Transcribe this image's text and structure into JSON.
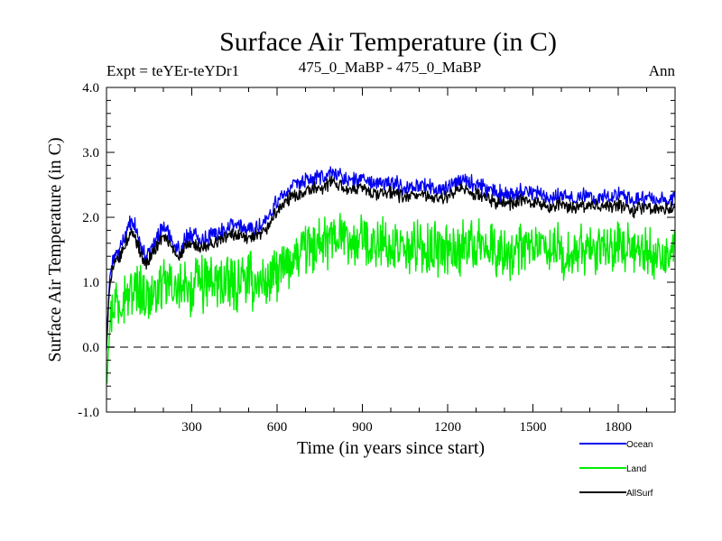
{
  "chart_data": {
    "type": "line",
    "title": "Surface Air Temperature (in C)",
    "subtitle_left": "Expt = teYEr-teYDr1",
    "subtitle_center": "475_0_MaBP - 475_0_MaBP",
    "subtitle_right": "Ann",
    "xlabel": "Time (in years since start)",
    "ylabel": "Surface Air Temperature (in C)",
    "xlim": [
      0,
      2000
    ],
    "ylim": [
      -1.0,
      4.0
    ],
    "xticks": [
      300,
      600,
      900,
      1200,
      1500,
      1800
    ],
    "xtick_labels": [
      "300",
      "600",
      "900",
      "1200",
      "1500",
      "1800"
    ],
    "yticks": [
      -1.0,
      0.0,
      1.0,
      2.0,
      3.0,
      4.0
    ],
    "ytick_labels": [
      "-1.0",
      "0.0",
      "1.0",
      "2.0",
      "3.0",
      "4.0"
    ],
    "reference_line": 0.0,
    "legend_position": "bottom-right",
    "series": [
      {
        "name": "Land",
        "color": "#00ee00",
        "x": [
          0,
          10,
          20,
          40,
          60,
          80,
          100,
          120,
          140,
          160,
          180,
          200,
          220,
          240,
          260,
          280,
          300,
          330,
          360,
          400,
          450,
          500,
          550,
          600,
          650,
          700,
          750,
          800,
          850,
          900,
          950,
          1000,
          1050,
          1100,
          1150,
          1200,
          1250,
          1300,
          1350,
          1400,
          1450,
          1500,
          1550,
          1600,
          1650,
          1700,
          1750,
          1800,
          1850,
          1900,
          1950,
          2000
        ],
        "values": [
          -0.5,
          0.3,
          0.6,
          0.75,
          0.8,
          0.85,
          0.8,
          0.9,
          0.7,
          0.85,
          0.8,
          0.9,
          0.95,
          0.9,
          0.85,
          0.95,
          0.9,
          1.0,
          0.95,
          1.0,
          0.95,
          1.0,
          1.05,
          1.15,
          1.3,
          1.45,
          1.55,
          1.65,
          1.6,
          1.65,
          1.6,
          1.55,
          1.5,
          1.55,
          1.5,
          1.5,
          1.55,
          1.6,
          1.5,
          1.45,
          1.5,
          1.55,
          1.5,
          1.45,
          1.5,
          1.55,
          1.5,
          1.5,
          1.45,
          1.45,
          1.4,
          1.45
        ],
        "noise": 0.33
      },
      {
        "name": "Ocean",
        "color": "#0000ee",
        "x": [
          0,
          10,
          20,
          40,
          60,
          80,
          100,
          120,
          140,
          160,
          180,
          200,
          220,
          240,
          260,
          280,
          300,
          330,
          360,
          400,
          450,
          500,
          550,
          600,
          650,
          700,
          750,
          800,
          850,
          900,
          950,
          1000,
          1050,
          1100,
          1150,
          1200,
          1250,
          1300,
          1350,
          1400,
          1450,
          1500,
          1550,
          1600,
          1650,
          1700,
          1750,
          1800,
          1850,
          1900,
          1950,
          2000
        ],
        "values": [
          0.0,
          1.0,
          1.3,
          1.45,
          1.65,
          1.9,
          1.85,
          1.55,
          1.35,
          1.55,
          1.7,
          1.85,
          1.75,
          1.55,
          1.5,
          1.7,
          1.75,
          1.65,
          1.7,
          1.8,
          1.9,
          1.8,
          1.9,
          2.25,
          2.45,
          2.55,
          2.6,
          2.7,
          2.55,
          2.6,
          2.5,
          2.55,
          2.45,
          2.5,
          2.45,
          2.45,
          2.6,
          2.5,
          2.4,
          2.35,
          2.4,
          2.4,
          2.3,
          2.35,
          2.3,
          2.35,
          2.3,
          2.35,
          2.25,
          2.3,
          2.25,
          2.3
        ],
        "noise": 0.1
      },
      {
        "name": "AllSurf",
        "color": "#000000",
        "x": [
          0,
          10,
          20,
          40,
          60,
          80,
          100,
          120,
          140,
          160,
          180,
          200,
          220,
          240,
          260,
          280,
          300,
          330,
          360,
          400,
          450,
          500,
          550,
          600,
          650,
          700,
          750,
          800,
          850,
          900,
          950,
          1000,
          1050,
          1100,
          1150,
          1200,
          1250,
          1300,
          1350,
          1400,
          1450,
          1500,
          1550,
          1600,
          1650,
          1700,
          1750,
          1800,
          1850,
          1900,
          1950,
          2000
        ],
        "values": [
          -0.05,
          0.9,
          1.2,
          1.35,
          1.5,
          1.75,
          1.7,
          1.45,
          1.25,
          1.45,
          1.55,
          1.7,
          1.6,
          1.45,
          1.4,
          1.55,
          1.6,
          1.5,
          1.55,
          1.65,
          1.75,
          1.65,
          1.75,
          2.1,
          2.3,
          2.4,
          2.45,
          2.55,
          2.4,
          2.45,
          2.35,
          2.4,
          2.3,
          2.35,
          2.3,
          2.3,
          2.45,
          2.35,
          2.25,
          2.2,
          2.25,
          2.25,
          2.15,
          2.2,
          2.15,
          2.2,
          2.15,
          2.2,
          2.1,
          2.15,
          2.1,
          2.15
        ],
        "noise": 0.08
      }
    ]
  }
}
